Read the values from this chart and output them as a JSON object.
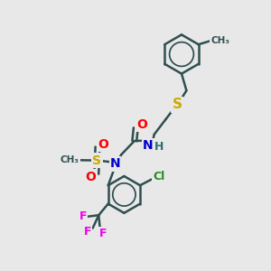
{
  "background_color": "#e8e8e8",
  "atom_colors": {
    "C": "#2f4f4f",
    "N": "#0000cd",
    "O": "#ff0000",
    "S": "#ccaa00",
    "F": "#ee00ee",
    "Cl": "#228b22",
    "H": "#2f6f6f"
  },
  "bond_color": "#2f4f4f",
  "bond_width": 1.8,
  "font_size": 9
}
